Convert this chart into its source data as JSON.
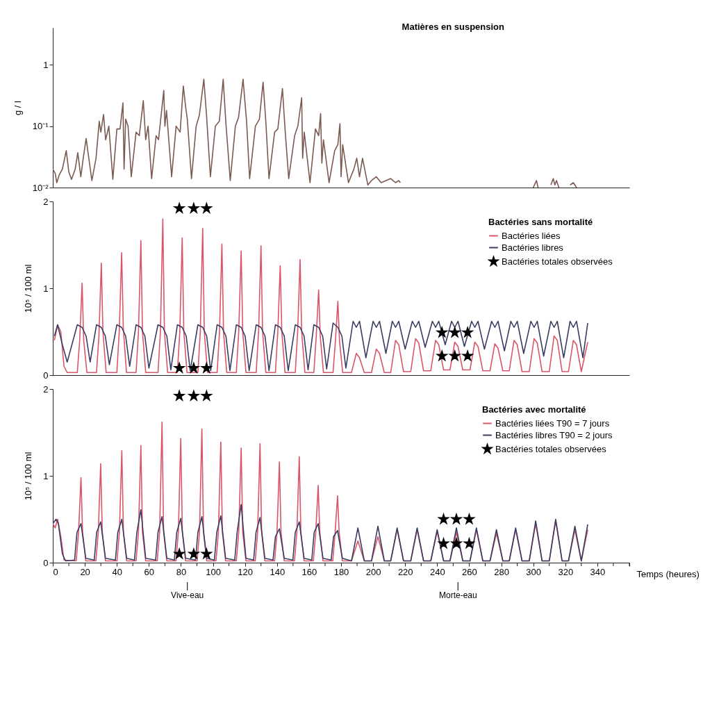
{
  "chart_data": [
    {
      "type": "line",
      "title": "Matières en suspension",
      "ylabel": "g / l",
      "log": true,
      "xlim": [
        0,
        360
      ],
      "ylim": [
        0.01,
        4
      ],
      "yticks": [
        {
          "value": 0.01,
          "label": "10⁻²"
        },
        {
          "value": 0.1,
          "label": "10⁻¹"
        },
        1
      ],
      "tick_labels": "y",
      "series": [
        {
          "color": "#7b5a52",
          "x": [
            0,
            1.5,
            2.5,
            4,
            6,
            8.4,
            10,
            11.7,
            14,
            15.6,
            17.5,
            19,
            20.8,
            22.5,
            24.4,
            27,
            29,
            30,
            31.7,
            33,
            35,
            37.5,
            40,
            42,
            43.8,
            44.5,
            45.5,
            47,
            49,
            52,
            54,
            56.5,
            58,
            59.5,
            61.7,
            64.5,
            66,
            69.3,
            70,
            71,
            74.2,
            77,
            79.5,
            81.5,
            83,
            84,
            86.6,
            89.5,
            91.5,
            94.3,
            96,
            98.4,
            101.5,
            104,
            106.4,
            108,
            110.8,
            114,
            116,
            118.8,
            121,
            122.9,
            126.5,
            129,
            131.3,
            133,
            135,
            138.5,
            140.5,
            143.4,
            145,
            147.3,
            151,
            153,
            155.4,
            156,
            157,
            160.6,
            164,
            166,
            167.2,
            168,
            169,
            172.5,
            176,
            178,
            179.3,
            180,
            181,
            184.6,
            188,
            189.8,
            191.5,
            193.4,
            196.7,
            199,
            202,
            205,
            208,
            211,
            214,
            216,
            217,
            258,
            300,
            302,
            303,
            305,
            311,
            312.5,
            313.5,
            314.5,
            316,
            318,
            323,
            325,
            327
          ],
          "values": [
            0.02,
            0.017,
            0.012,
            0.016,
            0.02,
            0.04,
            0.018,
            0.0136,
            0.02,
            0.037,
            0.015,
            0.03,
            0.063,
            0.03,
            0.013,
            0.03,
            0.12,
            0.08,
            0.155,
            0.06,
            0.1,
            0.0136,
            0.09,
            0.09,
            0.24,
            0.02,
            0.13,
            0.1,
            0.015,
            0.08,
            0.07,
            0.26,
            0.06,
            0.1,
            0.014,
            0.07,
            0.06,
            0.38,
            0.1,
            0.18,
            0.015,
            0.1,
            0.08,
            0.45,
            0.2,
            0.13,
            0.014,
            0.1,
            0.15,
            0.58,
            0.15,
            0.015,
            0.1,
            0.12,
            0.58,
            0.12,
            0.013,
            0.1,
            0.14,
            0.58,
            0.12,
            0.014,
            0.1,
            0.13,
            0.52,
            0.12,
            0.014,
            0.08,
            0.09,
            0.41,
            0.09,
            0.014,
            0.07,
            0.1,
            0.29,
            0.03,
            0.08,
            0.012,
            0.09,
            0.07,
            0.16,
            0.025,
            0.06,
            0.012,
            0.04,
            0.05,
            0.11,
            0.015,
            0.05,
            0.012,
            0.02,
            0.03,
            0.015,
            0.03,
            0.011,
            0.013,
            0.015,
            0.012,
            0.013,
            0.014,
            0.012,
            0.013,
            0.012,
            null,
            0.01,
            0.013,
            0.01,
            null,
            0.011,
            0.014,
            0.011,
            0.013,
            0.01,
            null,
            0.011,
            0.012,
            0.01
          ]
        }
      ]
    },
    {
      "type": "line",
      "legend_title": "Bactéries sans mortalité",
      "legend": "top right",
      "ylabel": "10⁵ / 100 ml",
      "xlim": [
        0,
        360
      ],
      "ylim": [
        0,
        2
      ],
      "yticks": [
        0,
        1,
        2
      ],
      "tick_labels": "y",
      "series": [
        {
          "name": "Bactéries liées",
          "color": "#d9566a",
          "x": [
            1,
            3,
            5,
            7,
            9,
            15.3,
            16.8,
            18.3,
            19.3,
            21.3,
            27.3,
            28.8,
            30.3,
            31.3,
            33.3,
            40,
            41.5,
            43,
            44,
            46,
            52,
            53.5,
            55,
            56,
            58,
            65.7,
            67.2,
            68.7,
            69.7,
            71.7,
            77.8,
            79.3,
            80.8,
            81.8,
            83.8,
            90.6,
            92.1,
            93.6,
            94.6,
            96.6,
            102.6,
            104.1,
            105.6,
            106.6,
            108.6,
            114.6,
            116.1,
            117.6,
            118.6,
            120.6,
            127,
            128.5,
            130,
            131,
            133,
            139,
            140.5,
            142,
            143,
            145,
            151.4,
            152.9,
            154.4,
            155.4,
            157.4,
            163,
            164.5,
            166,
            167,
            169,
            175,
            176.5,
            178,
            179,
            181,
            186.5,
            189.5,
            191.5,
            194.5,
            199,
            202,
            204,
            207,
            211,
            214,
            216,
            219,
            223.5,
            226.5,
            228.5,
            231.5,
            236,
            239,
            241,
            244,
            248,
            251,
            253,
            256,
            260.5,
            263.5,
            265.5,
            268.5,
            273,
            276,
            278,
            281,
            285,
            288,
            290,
            293,
            297.5,
            300.5,
            302.5,
            305.5,
            310,
            313,
            315,
            318,
            322,
            325,
            327,
            330,
            334
          ],
          "values": [
            0.4,
            0.58,
            0.5,
            0.1,
            0.03,
            0.03,
            0.4,
            1.06,
            0.4,
            0.03,
            0.03,
            0.45,
            1.29,
            0.5,
            0.03,
            0.03,
            0.5,
            1.41,
            0.55,
            0.03,
            0.03,
            0.5,
            1.55,
            0.5,
            0.03,
            0.03,
            0.5,
            1.8,
            0.5,
            0.03,
            0.03,
            0.5,
            1.58,
            0.5,
            0.03,
            0.03,
            0.5,
            1.69,
            0.5,
            0.03,
            0.03,
            0.5,
            1.51,
            0.5,
            0.03,
            0.03,
            0.5,
            1.43,
            0.5,
            0.03,
            0.03,
            0.5,
            1.49,
            0.5,
            0.03,
            0.03,
            0.5,
            1.26,
            0.5,
            0.03,
            0.03,
            0.5,
            1.33,
            0.5,
            0.03,
            0.03,
            0.45,
            0.98,
            0.45,
            0.03,
            0.03,
            0.4,
            0.85,
            0.4,
            0.03,
            0.03,
            0.25,
            0.2,
            0.03,
            0.03,
            0.3,
            0.25,
            0.03,
            0.03,
            0.4,
            0.35,
            0.04,
            0.04,
            0.42,
            0.37,
            0.05,
            0.05,
            0.4,
            0.35,
            0.06,
            0.06,
            0.38,
            0.33,
            0.06,
            0.06,
            0.38,
            0.33,
            0.05,
            0.05,
            0.36,
            0.31,
            0.05,
            0.05,
            0.4,
            0.35,
            0.04,
            0.04,
            0.42,
            0.37,
            0.04,
            0.04,
            0.45,
            0.4,
            0.04,
            0.04,
            0.4,
            0.35,
            0.04,
            0.38
          ]
        },
        {
          "name": "Bactéries libres",
          "color": "#3a3d63",
          "x": [
            1,
            3,
            6,
            9,
            15.3,
            18.3,
            20.8,
            23.3,
            27.3,
            30.3,
            32.8,
            35.3,
            40,
            43,
            45.5,
            48,
            52,
            55,
            57.5,
            60,
            65.7,
            68.7,
            71.2,
            73.7,
            77.8,
            80.8,
            83.3,
            85.8,
            90.6,
            93.6,
            96.1,
            98.6,
            102.6,
            105.6,
            108.1,
            110.6,
            114.6,
            117.6,
            120.1,
            122.6,
            127,
            130,
            132.5,
            135,
            139,
            142,
            144.5,
            147,
            151.4,
            154.4,
            156.9,
            159.4,
            163,
            166,
            168.5,
            171,
            175,
            178,
            180.5,
            183,
            187.5,
            189.5,
            191.5,
            195.5,
            200,
            202,
            204,
            208,
            212,
            214,
            216,
            220,
            224.5,
            226.5,
            228.5,
            232.5,
            237,
            239,
            241,
            245,
            249,
            251,
            253,
            257,
            261.5,
            263.5,
            265.5,
            269.5,
            274,
            276,
            278,
            282,
            286,
            288,
            290,
            294,
            298.5,
            300.5,
            302.5,
            306.5,
            311,
            313,
            315,
            319,
            323,
            325,
            327,
            331,
            334
          ],
          "values": [
            0.45,
            0.58,
            0.35,
            0.15,
            0.58,
            0.55,
            0.45,
            0.15,
            0.58,
            0.55,
            0.45,
            0.12,
            0.58,
            0.55,
            0.45,
            0.1,
            0.58,
            0.55,
            0.45,
            0.08,
            0.58,
            0.55,
            0.45,
            0.06,
            0.58,
            0.55,
            0.45,
            0.05,
            0.58,
            0.55,
            0.45,
            0.05,
            0.58,
            0.55,
            0.45,
            0.05,
            0.58,
            0.55,
            0.45,
            0.05,
            0.58,
            0.55,
            0.45,
            0.05,
            0.58,
            0.55,
            0.45,
            0.05,
            0.58,
            0.55,
            0.45,
            0.06,
            0.58,
            0.55,
            0.45,
            0.07,
            0.6,
            0.55,
            0.45,
            0.08,
            0.62,
            0.55,
            0.62,
            0.2,
            0.62,
            0.55,
            0.62,
            0.25,
            0.62,
            0.55,
            0.62,
            0.3,
            0.62,
            0.55,
            0.62,
            0.32,
            0.62,
            0.55,
            0.62,
            0.35,
            0.62,
            0.55,
            0.62,
            0.33,
            0.62,
            0.55,
            0.62,
            0.3,
            0.62,
            0.55,
            0.62,
            0.28,
            0.62,
            0.55,
            0.62,
            0.25,
            0.62,
            0.55,
            0.62,
            0.22,
            0.62,
            0.55,
            0.62,
            0.2,
            0.62,
            0.55,
            0.62,
            0.2,
            0.6
          ]
        },
        {
          "name": "Bactéries totales observées",
          "type": "scatter",
          "marker": "star",
          "color": "#000000",
          "x": [
            79,
            88,
            96,
            79,
            88,
            96,
            243,
            251,
            259,
            243,
            251,
            259
          ],
          "values": [
            1.92,
            1.92,
            1.92,
            0.08,
            0.08,
            0.08,
            0.49,
            0.49,
            0.49,
            0.22,
            0.22,
            0.22
          ]
        }
      ]
    },
    {
      "type": "line",
      "legend_title": "Bactéries avec mortalité",
      "legend": "top right",
      "ylabel": "10⁵ / 100 ml",
      "xlabel": "Temps (heures)",
      "xlim": [
        0,
        360
      ],
      "ylim": [
        0,
        2
      ],
      "yticks": [
        0,
        1,
        2
      ],
      "xticks": [
        0,
        {
          "value": 10,
          "label": null
        },
        20,
        {
          "value": 30,
          "label": null
        },
        40,
        {
          "value": 50,
          "label": null
        },
        60,
        {
          "value": 70,
          "label": null
        },
        80,
        {
          "value": 90,
          "label": null
        },
        100,
        {
          "value": 110,
          "label": null
        },
        120,
        {
          "value": 130,
          "label": null
        },
        140,
        {
          "value": 150,
          "label": null
        },
        160,
        {
          "value": 170,
          "label": null
        },
        180,
        {
          "value": 190,
          "label": null
        },
        200,
        {
          "value": 210,
          "label": null
        },
        220,
        {
          "value": 230,
          "label": null
        },
        240,
        {
          "value": 250,
          "label": null
        },
        260,
        {
          "value": 270,
          "label": null
        },
        280,
        {
          "value": 290,
          "label": null
        },
        300,
        {
          "value": 310,
          "label": null
        },
        320,
        {
          "value": 330,
          "label": null
        },
        340,
        {
          "value": 350,
          "label": null
        },
        {
          "value": 360,
          "label": null
        }
      ],
      "ref_lines": [
        {
          "axis": "x",
          "value": 84,
          "label": "Vive-eau"
        },
        {
          "axis": "x",
          "value": 253,
          "label": "Morte-eau"
        }
      ],
      "series": [
        {
          "name": "Bactéries liées  T90 = 7 jours",
          "color": "#d9566a",
          "x": [
            0,
            1.5,
            3,
            5,
            7,
            14.6,
            16.1,
            17.6,
            18.6,
            20.6,
            26.9,
            28.4,
            29.9,
            30.9,
            32.9,
            40.1,
            41.6,
            43.1,
            44.1,
            46.1,
            52,
            53.5,
            55,
            56,
            58,
            65.2,
            66.7,
            68.2,
            69.2,
            71.2,
            76.9,
            78.4,
            79.9,
            80.9,
            82.9,
            90.1,
            91.6,
            93.1,
            94.1,
            96.1,
            101.9,
            103.4,
            104.9,
            105.9,
            107.9,
            114.6,
            116.1,
            117.6,
            118.6,
            120.6,
            126.4,
            127.9,
            129.4,
            130.4,
            132.4,
            138.5,
            140,
            141.5,
            142.5,
            144.5,
            150.9,
            152.4,
            153.9,
            154.9,
            156.9,
            162.7,
            164.2,
            165.7,
            166.7,
            168.7,
            174.8,
            176.3,
            177.8,
            178.8,
            180.8,
            186.5,
            190.5,
            194.5,
            199,
            203,
            207,
            211,
            215,
            219,
            223.5,
            227.5,
            231.5,
            236,
            240,
            244,
            248,
            252,
            256,
            260.5,
            264.5,
            268.5,
            273,
            277,
            281,
            285,
            289,
            293,
            297.5,
            301.5,
            305.5,
            310,
            314,
            318,
            322,
            326,
            330,
            334
          ],
          "values": [
            0.45,
            0.4,
            0.5,
            0.3,
            0.03,
            0.02,
            0.35,
            0.98,
            0.35,
            0.02,
            0.02,
            0.35,
            1.14,
            0.35,
            0.02,
            0.02,
            0.35,
            1.29,
            0.35,
            0.02,
            0.02,
            0.35,
            1.35,
            0.35,
            0.02,
            0.02,
            0.35,
            1.62,
            0.35,
            0.02,
            0.02,
            0.35,
            1.43,
            0.35,
            0.02,
            0.02,
            0.35,
            1.54,
            0.35,
            0.02,
            0.02,
            0.35,
            1.39,
            0.35,
            0.02,
            0.02,
            0.35,
            1.32,
            0.35,
            0.02,
            0.02,
            0.35,
            1.37,
            0.35,
            0.02,
            0.02,
            0.35,
            1.16,
            0.35,
            0.02,
            0.02,
            0.35,
            1.22,
            0.35,
            0.02,
            0.02,
            0.35,
            0.89,
            0.35,
            0.02,
            0.02,
            0.35,
            0.77,
            0.35,
            0.02,
            0.02,
            0.25,
            0.02,
            0.02,
            0.3,
            0.02,
            0.02,
            0.38,
            0.02,
            0.02,
            0.38,
            0.02,
            0.02,
            0.36,
            0.02,
            0.02,
            0.35,
            0.02,
            0.02,
            0.38,
            0.02,
            0.02,
            0.34,
            0.02,
            0.02,
            0.38,
            0.02,
            0.02,
            0.45,
            0.02,
            0.02,
            0.48,
            0.02,
            0.02,
            0.38,
            0.02,
            0.38
          ]
        },
        {
          "name": "Bactéries libres T90 = 2 jours",
          "color": "#3a3d63",
          "x": [
            0,
            2,
            3.5,
            6,
            8,
            13.6,
            15.1,
            17.6,
            20.6,
            25.9,
            27.4,
            29.9,
            32.9,
            39.1,
            40.6,
            43.1,
            46.1,
            51,
            52.5,
            55,
            58,
            64.2,
            65.7,
            68.2,
            71.2,
            75.9,
            77.4,
            79.9,
            82.9,
            89.1,
            90.6,
            93.1,
            96.1,
            100.9,
            102.4,
            104.9,
            107.9,
            113.6,
            115.1,
            117.6,
            120.6,
            125.4,
            126.9,
            129.4,
            132.4,
            137.5,
            139,
            141.5,
            144.5,
            149.9,
            151.4,
            153.9,
            156.9,
            161.7,
            163.2,
            165.7,
            168.7,
            173.8,
            175.3,
            177.8,
            180.8,
            186.5,
            190.5,
            194.5,
            199,
            203,
            207,
            211,
            215,
            219,
            223.5,
            227.5,
            231.5,
            236,
            240,
            244,
            248,
            252,
            256,
            260.5,
            264.5,
            268.5,
            273,
            277,
            281,
            285,
            289,
            293,
            297.5,
            301.5,
            305.5,
            310,
            314,
            318,
            322,
            326,
            330,
            334
          ],
          "values": [
            0.45,
            0.5,
            0.45,
            0.1,
            0.02,
            0.03,
            0.35,
            0.45,
            0.05,
            0.03,
            0.35,
            0.47,
            0.05,
            0.03,
            0.35,
            0.5,
            0.05,
            0.03,
            0.35,
            0.61,
            0.05,
            0.03,
            0.35,
            0.53,
            0.05,
            0.03,
            0.35,
            0.51,
            0.05,
            0.03,
            0.35,
            0.53,
            0.05,
            0.03,
            0.35,
            0.54,
            0.05,
            0.03,
            0.35,
            0.67,
            0.05,
            0.03,
            0.35,
            0.52,
            0.05,
            0.03,
            0.3,
            0.39,
            0.05,
            0.03,
            0.35,
            0.47,
            0.05,
            0.03,
            0.35,
            0.45,
            0.05,
            0.03,
            0.3,
            0.37,
            0.05,
            0.02,
            0.4,
            0.02,
            0.02,
            0.42,
            0.02,
            0.02,
            0.4,
            0.02,
            0.02,
            0.4,
            0.02,
            0.02,
            0.38,
            0.02,
            0.02,
            0.4,
            0.02,
            0.02,
            0.4,
            0.02,
            0.02,
            0.38,
            0.02,
            0.02,
            0.4,
            0.02,
            0.02,
            0.48,
            0.02,
            0.02,
            0.5,
            0.02,
            0.02,
            0.42,
            0.02,
            0.44
          ]
        },
        {
          "name": "Bactéries totales observées",
          "type": "scatter",
          "marker": "star",
          "color": "#000000",
          "x": [
            79,
            88,
            96,
            79,
            88,
            96,
            244,
            252,
            260,
            244,
            252,
            260
          ],
          "values": [
            1.92,
            1.92,
            1.92,
            0.1,
            0.1,
            0.1,
            0.5,
            0.5,
            0.5,
            0.22,
            0.22,
            0.22
          ]
        }
      ]
    }
  ]
}
